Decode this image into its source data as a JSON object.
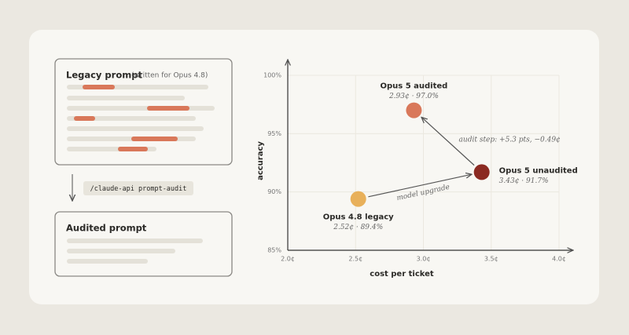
{
  "diagram": {
    "legacy_box": {
      "title": "Legacy prompt",
      "subtitle": "(written for Opus 4.8)"
    },
    "command": "/claude-api prompt-audit",
    "audited_box": {
      "title": "Audited prompt"
    }
  },
  "chart_data": {
    "type": "scatter",
    "xlabel": "cost per ticket",
    "ylabel": "accuracy",
    "xlim": [
      2.0,
      4.0
    ],
    "ylim": [
      85,
      100
    ],
    "xticks": [
      {
        "value": 2.0,
        "label": "2.0¢"
      },
      {
        "value": 2.5,
        "label": "2.5¢"
      },
      {
        "value": 3.0,
        "label": "3.0¢"
      },
      {
        "value": 3.5,
        "label": "3.5¢"
      },
      {
        "value": 4.0,
        "label": "4.0¢"
      }
    ],
    "yticks": [
      {
        "value": 85,
        "label": "85%"
      },
      {
        "value": 90,
        "label": "90%"
      },
      {
        "value": 95,
        "label": "95%"
      },
      {
        "value": 100,
        "label": "100%"
      }
    ],
    "grid": true,
    "series": [
      {
        "name": "Opus 4.8 legacy",
        "color": "#e8b05a",
        "x": [
          2.52
        ],
        "y": [
          89.4
        ],
        "value_labels": [
          "2.52¢ · 89.4%"
        ]
      },
      {
        "name": "Opus 5 audited",
        "color": "#d9785a",
        "x": [
          2.93
        ],
        "y": [
          97.0
        ],
        "value_labels": [
          "2.93¢ · 97.0%"
        ]
      },
      {
        "name": "Opus 5 unaudited",
        "color": "#8b2a22",
        "x": [
          3.43
        ],
        "y": [
          91.7
        ],
        "value_labels": [
          "3.43¢ · 91.7%"
        ]
      }
    ],
    "annotations": [
      {
        "text": "model upgrade"
      },
      {
        "text": "audit step: +5.3 pts, −0.49¢"
      }
    ]
  }
}
